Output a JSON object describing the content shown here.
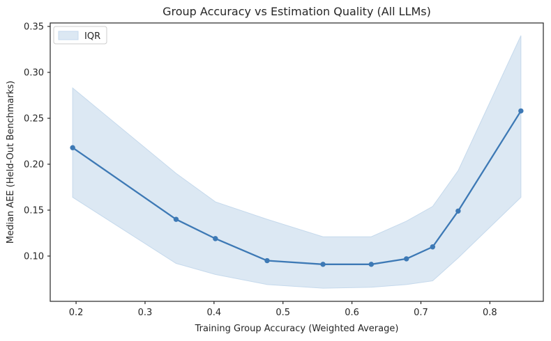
{
  "chart_data": {
    "type": "line",
    "title": "Group Accuracy vs Estimation Quality (All LLMs)",
    "xlabel": "Training Group Accuracy (Weighted Average)",
    "ylabel": "Median AEE (Held-Out Benchmarks)",
    "legend": {
      "entries": [
        {
          "label": "IQR",
          "kind": "band-patch"
        }
      ],
      "position": "upper left"
    },
    "x": [
      0.195,
      0.345,
      0.402,
      0.477,
      0.558,
      0.628,
      0.679,
      0.717,
      0.754,
      0.845
    ],
    "series": [
      {
        "name": "Median AEE",
        "style": "line+markers",
        "values": [
          0.218,
          0.14,
          0.119,
          0.095,
          0.091,
          0.091,
          0.097,
          0.11,
          0.149,
          0.258
        ]
      }
    ],
    "band": {
      "name": "IQR",
      "lower": [
        0.164,
        0.092,
        0.08,
        0.069,
        0.065,
        0.066,
        0.069,
        0.073,
        0.098,
        0.164
      ],
      "upper": [
        0.283,
        0.19,
        0.159,
        0.14,
        0.121,
        0.121,
        0.138,
        0.154,
        0.193,
        0.34
      ]
    },
    "xticks": [
      0.2,
      0.3,
      0.4,
      0.5,
      0.6,
      0.7,
      0.8
    ],
    "xtick_labels": [
      "0.2",
      "0.3",
      "0.4",
      "0.5",
      "0.6",
      "0.7",
      "0.8"
    ],
    "yticks": [
      0.1,
      0.15,
      0.2,
      0.25,
      0.3,
      0.35
    ],
    "ytick_labels": [
      "0.10",
      "0.15",
      "0.20",
      "0.25",
      "0.30",
      "0.35"
    ],
    "xlim": [
      0.1625,
      0.8775
    ],
    "ylim": [
      0.0507,
      0.3538
    ],
    "grid": false,
    "colors": {
      "line": "#3d79b5",
      "marker": "#3d79b5",
      "band_fill": "#dce8f3",
      "band_edge": "#c5d9ec",
      "spine": "#262626",
      "tick": "#262626",
      "text": "#262626",
      "legend_border": "#cccccc",
      "legend_bg": "#ffffff"
    }
  }
}
